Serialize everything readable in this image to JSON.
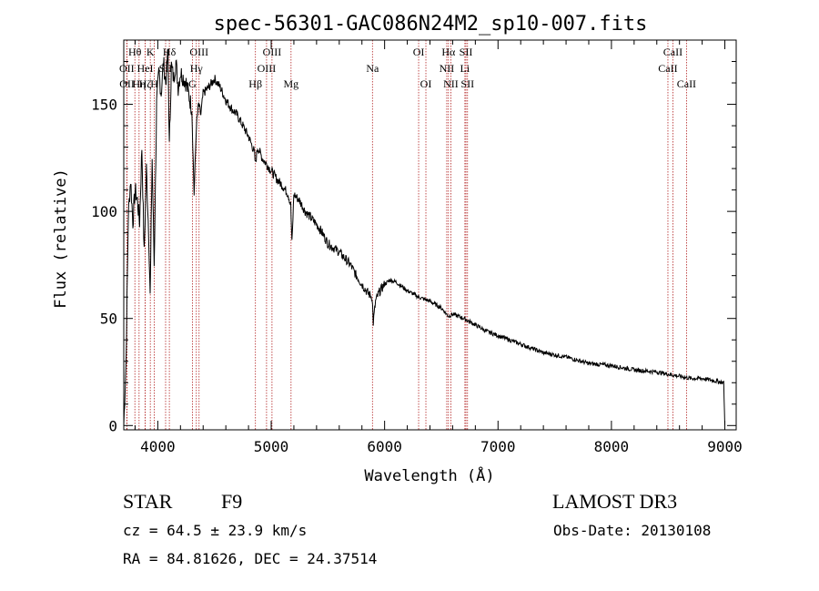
{
  "chart_data": {
    "type": "line",
    "title": "spec-56301-GAC086N24M2_sp10-007.fits",
    "xlabel": "Wavelength (Å)",
    "ylabel": "Flux (relative)",
    "xlim": [
      3700,
      9100
    ],
    "ylim": [
      -2,
      180
    ],
    "xticks": [
      4000,
      5000,
      6000,
      7000,
      8000,
      9000
    ],
    "xtick_labels": [
      "4000",
      "5000",
      "6000",
      "7000",
      "8000",
      "9000"
    ],
    "yticks": [
      0,
      50,
      100,
      150
    ],
    "ytick_labels": [
      "0",
      "50",
      "100",
      "150"
    ],
    "grid": false,
    "series": [
      {
        "name": "spectrum",
        "x": [
          3700,
          3720,
          3740,
          3760,
          3780,
          3800,
          3820,
          3840,
          3860,
          3880,
          3900,
          3920,
          3933,
          3950,
          3968,
          3990,
          4010,
          4030,
          4050,
          4070,
          4090,
          4102,
          4120,
          4140,
          4160,
          4180,
          4200,
          4250,
          4300,
          4320,
          4340,
          4360,
          4380,
          4400,
          4450,
          4500,
          4550,
          4600,
          4650,
          4700,
          4750,
          4800,
          4850,
          4861,
          4880,
          4920,
          4960,
          5000,
          5050,
          5100,
          5150,
          5172,
          5183,
          5200,
          5250,
          5300,
          5350,
          5400,
          5450,
          5500,
          5550,
          5600,
          5650,
          5700,
          5750,
          5800,
          5850,
          5890,
          5900,
          5920,
          5950,
          6000,
          6050,
          6100,
          6200,
          6300,
          6400,
          6500,
          6563,
          6600,
          6700,
          6800,
          6900,
          7000,
          7200,
          7400,
          7600,
          7800,
          8000,
          8200,
          8400,
          8500,
          8600,
          8700,
          8800,
          8900,
          8990,
          9000
        ],
        "y": [
          0,
          30,
          98,
          115,
          95,
          110,
          105,
          95,
          130,
          80,
          120,
          90,
          60,
          125,
          75,
          150,
          165,
          155,
          170,
          160,
          175,
          130,
          168,
          162,
          170,
          158,
          165,
          160,
          148,
          108,
          140,
          150,
          145,
          155,
          158,
          162,
          158,
          152,
          148,
          145,
          140,
          135,
          128,
          122,
          130,
          125,
          122,
          119,
          115,
          112,
          108,
          103,
          85,
          108,
          105,
          100,
          97,
          94,
          90,
          85,
          83,
          81,
          78,
          75,
          70,
          66,
          62,
          60,
          48,
          58,
          62,
          66,
          68,
          67,
          63,
          60,
          58,
          55,
          51,
          52,
          50,
          47,
          44,
          42,
          38,
          34,
          32,
          29,
          28,
          26,
          25,
          24,
          23,
          22,
          22,
          21,
          20,
          0
        ]
      }
    ],
    "annotations": [
      {
        "label": "Hθ",
        "wavelength": 3798,
        "row": 1
      },
      {
        "label": "OII",
        "wavelength": 3727,
        "row": 2
      },
      {
        "label": "OII",
        "wavelength": 3729,
        "row": 3
      },
      {
        "label": "Hη",
        "wavelength": 3835,
        "row": 3
      },
      {
        "label": "HeI",
        "wavelength": 3889,
        "row": 2
      },
      {
        "label": "Hζ",
        "wavelength": 3889,
        "row": 3
      },
      {
        "label": "K",
        "wavelength": 3934,
        "row": 1
      },
      {
        "label": "H",
        "wavelength": 3969,
        "row": 3
      },
      {
        "label": "SII",
        "wavelength": 4069,
        "row": 2
      },
      {
        "label": "Hδ",
        "wavelength": 4102,
        "row": 1
      },
      {
        "label": "OIII",
        "wavelength": 4364,
        "row": 1
      },
      {
        "label": "Hγ",
        "wavelength": 4340,
        "row": 2
      },
      {
        "label": "G",
        "wavelength": 4305,
        "row": 3
      },
      {
        "label": "Hβ",
        "wavelength": 4861,
        "row": 3
      },
      {
        "label": "OIII",
        "wavelength": 5007,
        "row": 1
      },
      {
        "label": "OIII",
        "wavelength": 4959,
        "row": 2
      },
      {
        "label": "Mg",
        "wavelength": 5175,
        "row": 3
      },
      {
        "label": "Na",
        "wavelength": 5893,
        "row": 2
      },
      {
        "label": "OI",
        "wavelength": 6300,
        "row": 1
      },
      {
        "label": "OI",
        "wavelength": 6364,
        "row": 3
      },
      {
        "label": "Hα",
        "wavelength": 6563,
        "row": 1
      },
      {
        "label": "NII",
        "wavelength": 6548,
        "row": 2
      },
      {
        "label": "NII",
        "wavelength": 6584,
        "row": 3
      },
      {
        "label": "SII",
        "wavelength": 6717,
        "row": 1
      },
      {
        "label": "Li",
        "wavelength": 6708,
        "row": 2
      },
      {
        "label": "SII",
        "wavelength": 6731,
        "row": 3
      },
      {
        "label": "CaII",
        "wavelength": 8542,
        "row": 1
      },
      {
        "label": "CaII",
        "wavelength": 8498,
        "row": 2
      },
      {
        "label": "CaII",
        "wavelength": 8662,
        "row": 3
      }
    ],
    "colors": {
      "spectrum": "#000000",
      "lines": "#b22222",
      "axes": "#000000"
    }
  },
  "info": {
    "class_label": "STAR",
    "subclass": "F9",
    "cz": "cz = 64.5 ± 23.9 km/s",
    "coords": "RA =  84.81626, DEC =  24.37514",
    "survey": "LAMOST DR3",
    "obs_date": "Obs-Date: 20130108"
  }
}
